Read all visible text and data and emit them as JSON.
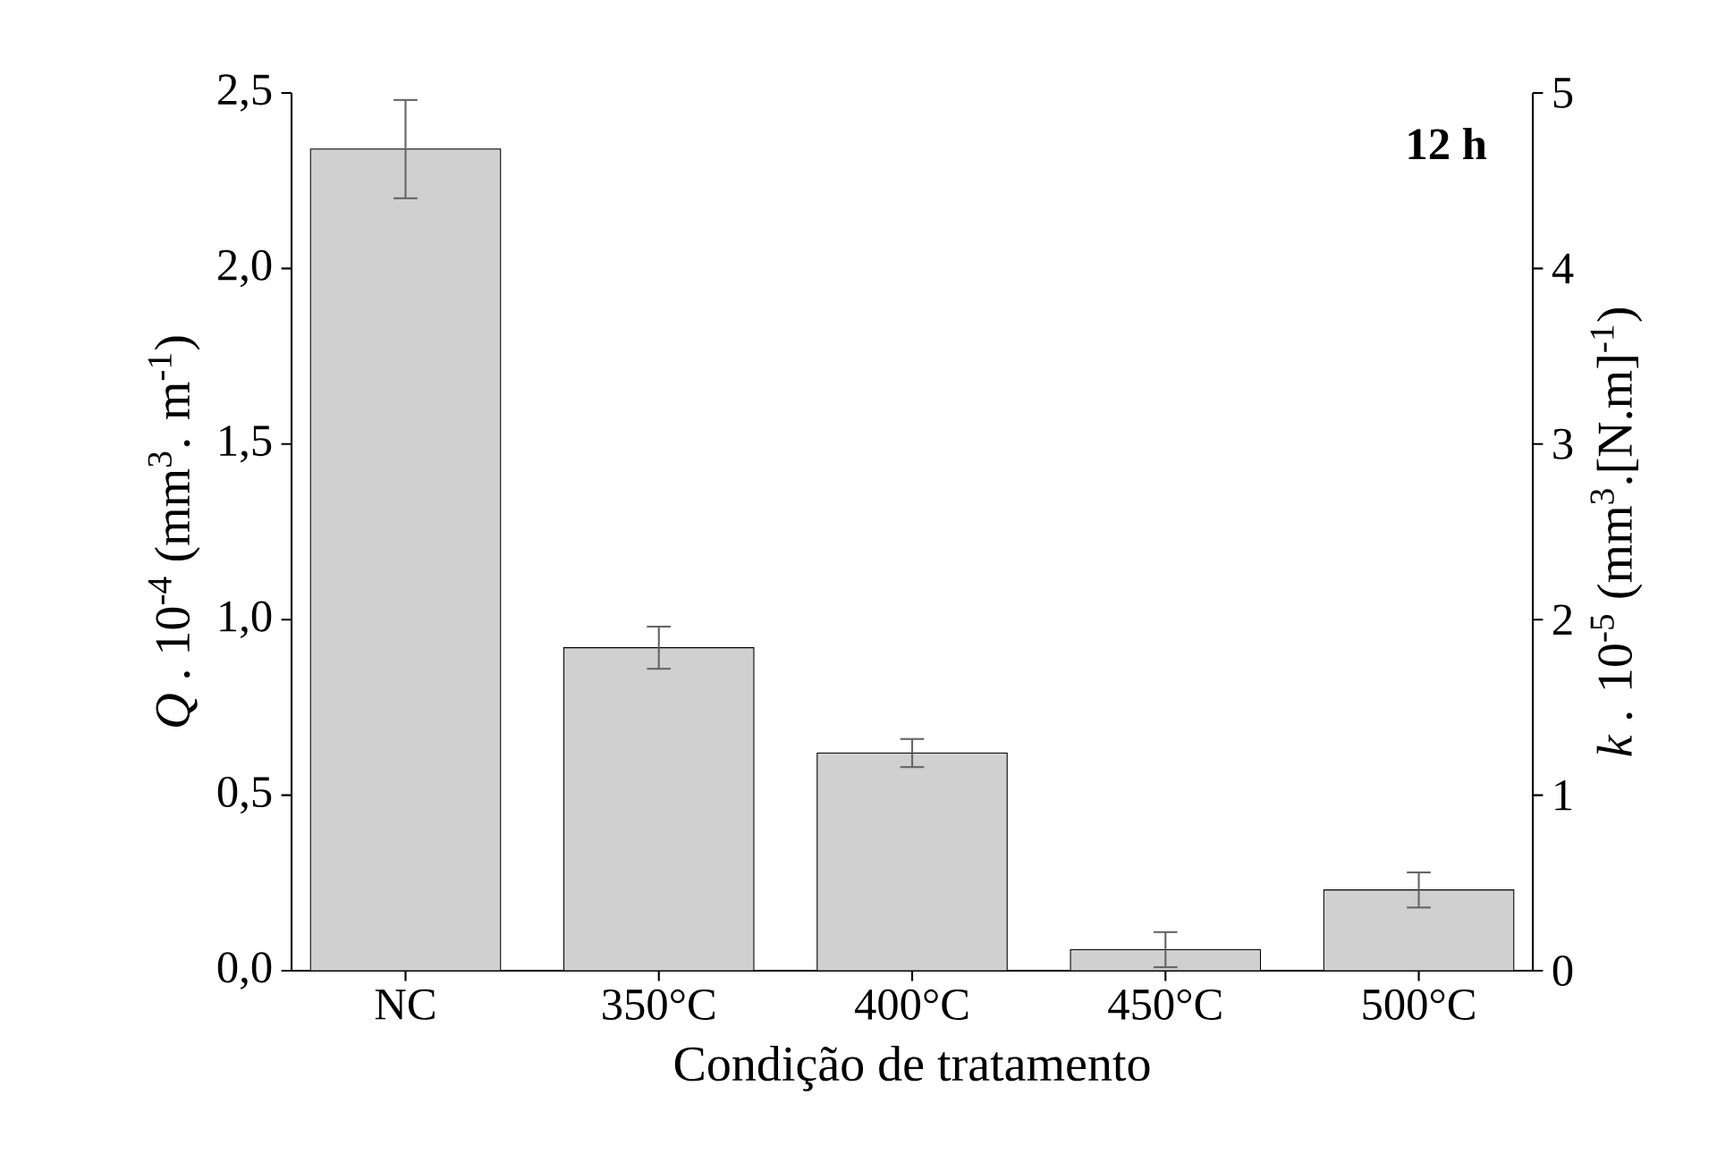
{
  "chart_data": {
    "type": "bar",
    "categories": [
      "NC",
      "350°C",
      "400°C",
      "450°C",
      "500°C"
    ],
    "values": [
      2.34,
      0.92,
      0.62,
      0.06,
      0.23
    ],
    "errors": [
      0.14,
      0.06,
      0.04,
      0.05,
      0.05
    ],
    "color": "#d0d0d0",
    "xlabel": "Condição de tratamento",
    "ylabel": "*Q* . 10$^{-4}$ (mm$^{3}$. m$^{-1}$)",
    "y2label": "*k* . 10$^{-5}$ (mm$^{3}$.[N.m]$^{-1}$)",
    "ylim": [
      0,
      2.5
    ],
    "yticks": [
      {
        "value": 0,
        "label": "0,0"
      },
      {
        "value": 0.5,
        "label": "0,5"
      },
      {
        "value": 1.0,
        "label": "1,0"
      },
      {
        "value": 1.5,
        "label": "1,5"
      },
      {
        "value": 2.0,
        "label": "2,0"
      },
      {
        "value": 2.5,
        "label": "2,5"
      }
    ],
    "y2lim": [
      0,
      5
    ],
    "y2ticks": [
      0,
      1,
      2,
      3,
      4,
      5
    ],
    "annotations": [
      "**12 h**"
    ],
    "grid": false
  }
}
